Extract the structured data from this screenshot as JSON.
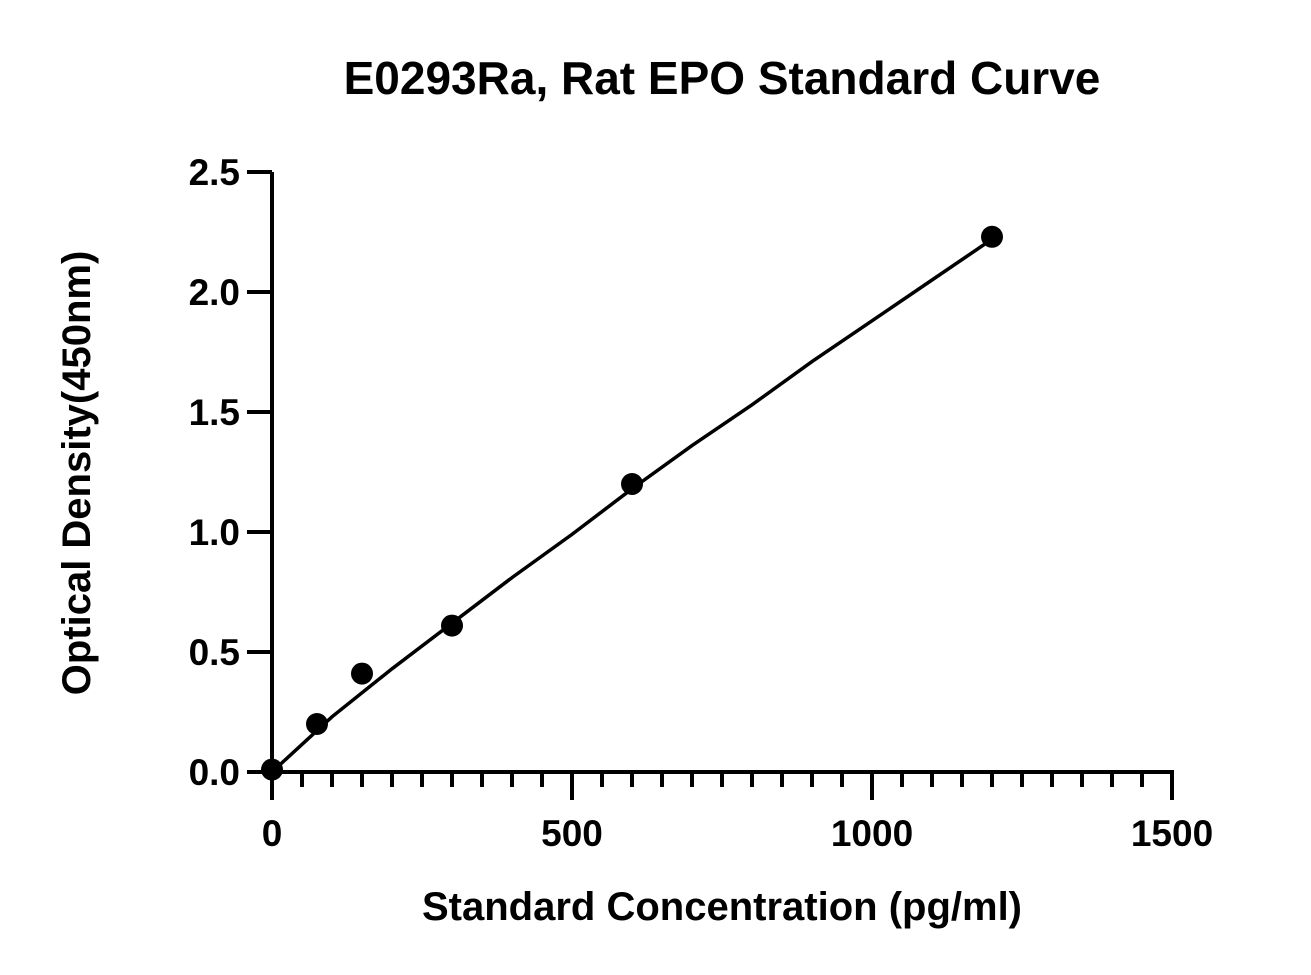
{
  "chart_data": {
    "type": "scatter",
    "title": "E0293Ra, Rat EPO Standard Curve",
    "xlabel": "Standard Concentration (pg/ml)",
    "ylabel": "Optical Density(450nm)",
    "xlim": [
      0,
      1500
    ],
    "ylim": [
      0,
      2.5
    ],
    "x_ticks": [
      0,
      500,
      1000,
      1500
    ],
    "x_tick_labels": [
      "0",
      "500",
      "1000",
      "1500"
    ],
    "x_minor_step": 50,
    "y_ticks": [
      0,
      0.5,
      1.0,
      1.5,
      2.0,
      2.5
    ],
    "y_tick_labels": [
      "0.0",
      "0.5",
      "1.0",
      "1.5",
      "2.0",
      "2.5"
    ],
    "grid": false,
    "legend": "none",
    "series": [
      {
        "points": [
          {
            "x": 0,
            "y": 0.01
          },
          {
            "x": 75,
            "y": 0.2
          },
          {
            "x": 150,
            "y": 0.41
          },
          {
            "x": 300,
            "y": 0.61
          },
          {
            "x": 600,
            "y": 1.2
          },
          {
            "x": 1200,
            "y": 2.23
          }
        ],
        "color": "#000000",
        "marker": "filled-circle"
      }
    ],
    "fit_curve": {
      "model": "fitted standard curve",
      "points": [
        {
          "x": 0,
          "y": 0.0
        },
        {
          "x": 100,
          "y": 0.23
        },
        {
          "x": 200,
          "y": 0.43
        },
        {
          "x": 300,
          "y": 0.62
        },
        {
          "x": 400,
          "y": 0.81
        },
        {
          "x": 500,
          "y": 0.99
        },
        {
          "x": 600,
          "y": 1.18
        },
        {
          "x": 700,
          "y": 1.36
        },
        {
          "x": 800,
          "y": 1.53
        },
        {
          "x": 900,
          "y": 1.71
        },
        {
          "x": 1000,
          "y": 1.88
        },
        {
          "x": 1100,
          "y": 2.05
        },
        {
          "x": 1200,
          "y": 2.22
        }
      ]
    }
  }
}
